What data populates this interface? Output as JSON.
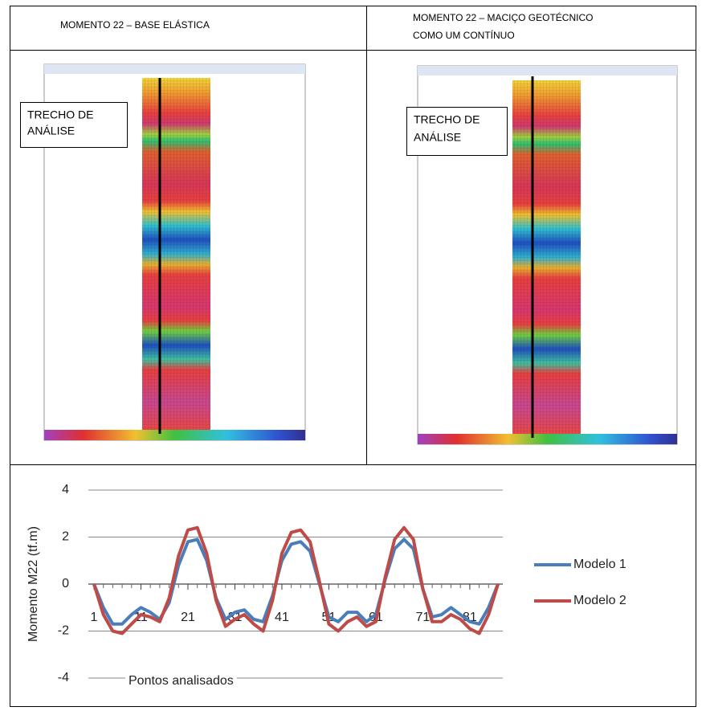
{
  "table": {
    "headers": [
      [
        "MOMENTO 22 – BASE ELÁSTICA"
      ],
      [
        "MOMENTO 22 – MACIÇO GEOTÉCNICO",
        "COMO UM CONTÍNUO"
      ]
    ],
    "images": [
      {
        "label": [
          "TRECHO DE",
          "ANÁLISE"
        ]
      },
      {
        "label": [
          "TRECHO DE",
          "ANÁLISE"
        ]
      }
    ]
  },
  "chart_data": {
    "type": "line",
    "y_label": "Momento M22 (tf.m)",
    "x_label": "Pontos analisados",
    "x": [
      1,
      3,
      5,
      7,
      9,
      11,
      13,
      15,
      17,
      19,
      21,
      23,
      25,
      27,
      29,
      31,
      33,
      35,
      37,
      39,
      41,
      43,
      45,
      47,
      49,
      51,
      53,
      55,
      57,
      59,
      61,
      63,
      65,
      67,
      69,
      71,
      73,
      75,
      77,
      79,
      81,
      83,
      85,
      87
    ],
    "xlim": [
      1,
      87
    ],
    "xticks": [
      1,
      11,
      21,
      31,
      41,
      51,
      61,
      71,
      81
    ],
    "ylim": [
      -4,
      4
    ],
    "yticks": [
      -4,
      -2,
      0,
      2,
      4
    ],
    "grid": true,
    "legend": "right",
    "series": [
      {
        "name": "Modelo 1",
        "color": "#4a7ebb",
        "values": [
          0,
          -1.0,
          -1.7,
          -1.7,
          -1.3,
          -1.0,
          -1.2,
          -1.5,
          -0.8,
          0.8,
          1.8,
          1.9,
          1.0,
          -0.6,
          -1.5,
          -1.2,
          -1.1,
          -1.5,
          -1.6,
          -0.5,
          1.0,
          1.7,
          1.8,
          1.4,
          0.0,
          -1.4,
          -1.6,
          -1.2,
          -1.2,
          -1.6,
          -1.3,
          0.2,
          1.5,
          1.9,
          1.5,
          -0.2,
          -1.4,
          -1.3,
          -1.0,
          -1.3,
          -1.6,
          -1.7,
          -1.0,
          0
        ]
      },
      {
        "name": "Modelo 2",
        "color": "#be4b48",
        "values": [
          0,
          -1.3,
          -2.0,
          -2.1,
          -1.7,
          -1.3,
          -1.4,
          -1.6,
          -0.6,
          1.2,
          2.3,
          2.4,
          1.3,
          -0.7,
          -1.8,
          -1.5,
          -1.3,
          -1.7,
          -2.0,
          -0.7,
          1.3,
          2.2,
          2.3,
          1.8,
          0.1,
          -1.7,
          -2.0,
          -1.6,
          -1.4,
          -1.8,
          -1.6,
          0.3,
          1.9,
          2.4,
          1.9,
          -0.2,
          -1.6,
          -1.6,
          -1.3,
          -1.5,
          -1.9,
          -2.1,
          -1.3,
          0
        ]
      }
    ]
  }
}
